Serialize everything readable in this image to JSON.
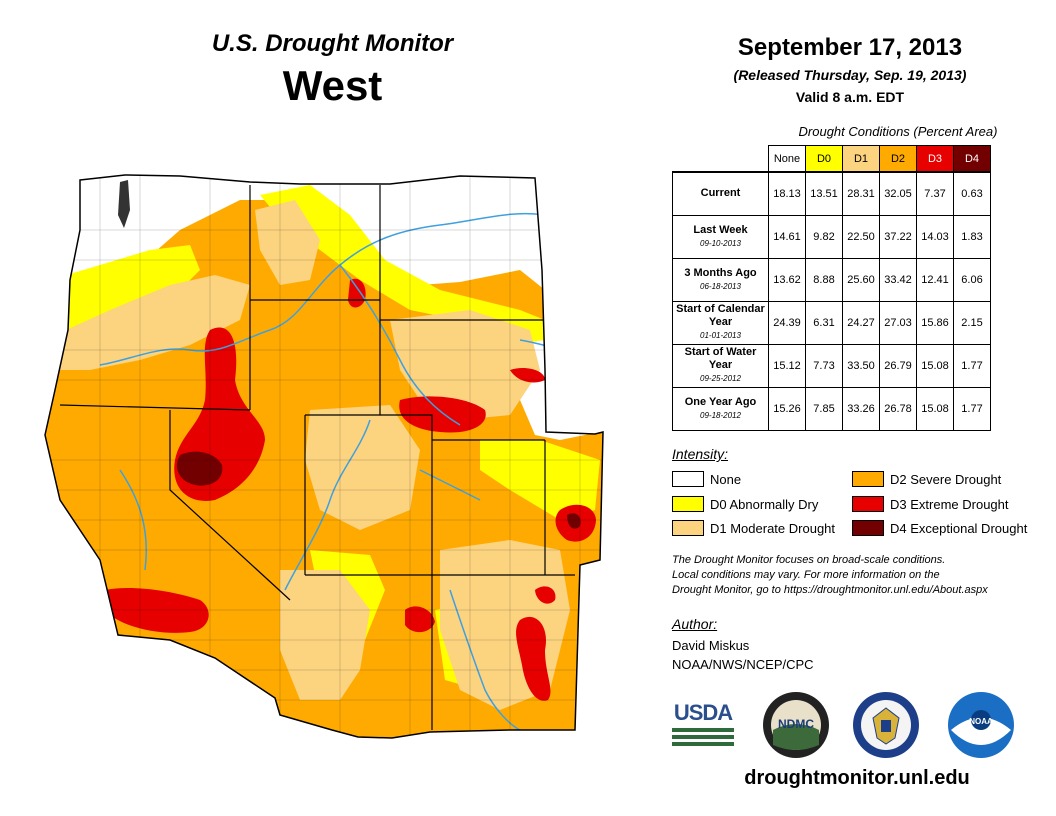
{
  "header": {
    "monitor_title": "U.S. Drought Monitor",
    "region": "West",
    "date": "September 17, 2013",
    "released": "(Released Thursday, Sep. 19, 2013)",
    "valid": "Valid 8 a.m. EDT"
  },
  "table": {
    "caption": "Drought Conditions (Percent Area)",
    "columns": [
      {
        "label": "None",
        "color": "#ffffff"
      },
      {
        "label": "D0",
        "color": "#ffff00"
      },
      {
        "label": "D1",
        "color": "#fcd37f"
      },
      {
        "label": "D2",
        "color": "#ffaa00"
      },
      {
        "label": "D3",
        "color": "#e60000"
      },
      {
        "label": "D4",
        "color": "#730000"
      }
    ],
    "rows": [
      {
        "label": "Current",
        "date": "",
        "values": [
          "18.13",
          "13.51",
          "28.31",
          "32.05",
          "7.37",
          "0.63"
        ]
      },
      {
        "label": "Last Week",
        "date": "09-10-2013",
        "values": [
          "14.61",
          "9.82",
          "22.50",
          "37.22",
          "14.03",
          "1.83"
        ]
      },
      {
        "label": "3 Months Ago",
        "date": "06-18-2013",
        "values": [
          "13.62",
          "8.88",
          "25.60",
          "33.42",
          "12.41",
          "6.06"
        ]
      },
      {
        "label": "Start of Calendar Year",
        "date": "01-01-2013",
        "values": [
          "24.39",
          "6.31",
          "24.27",
          "27.03",
          "15.86",
          "2.15"
        ]
      },
      {
        "label": "Start of Water Year",
        "date": "09-25-2012",
        "values": [
          "15.12",
          "7.73",
          "33.50",
          "26.79",
          "15.08",
          "1.77"
        ]
      },
      {
        "label": "One Year Ago",
        "date": "09-18-2012",
        "values": [
          "15.26",
          "7.85",
          "33.26",
          "26.78",
          "15.08",
          "1.77"
        ]
      }
    ]
  },
  "legend": {
    "title": "Intensity:",
    "items": [
      {
        "label": "None",
        "color": "#ffffff"
      },
      {
        "label": "D0 Abnormally Dry",
        "color": "#ffff00"
      },
      {
        "label": "D1 Moderate Drought",
        "color": "#fcd37f"
      },
      {
        "label": "D2 Severe Drought",
        "color": "#ffaa00"
      },
      {
        "label": "D3 Extreme Drought",
        "color": "#e60000"
      },
      {
        "label": "D4 Exceptional Drought",
        "color": "#730000"
      }
    ]
  },
  "note": {
    "line1": "The Drought Monitor focuses on broad-scale conditions.",
    "line2": "Local conditions may vary. For more information on the",
    "line3": "Drought Monitor, go to https://droughtmonitor.unl.edu/About.aspx"
  },
  "author": {
    "title": "Author:",
    "name": "David Miskus",
    "org": "NOAA/NWS/NCEP/CPC"
  },
  "logos": {
    "usda": "USDA",
    "ndmc": "NDMC",
    "noaa": "NOAA"
  },
  "url": "droughtmonitor.unl.edu"
}
